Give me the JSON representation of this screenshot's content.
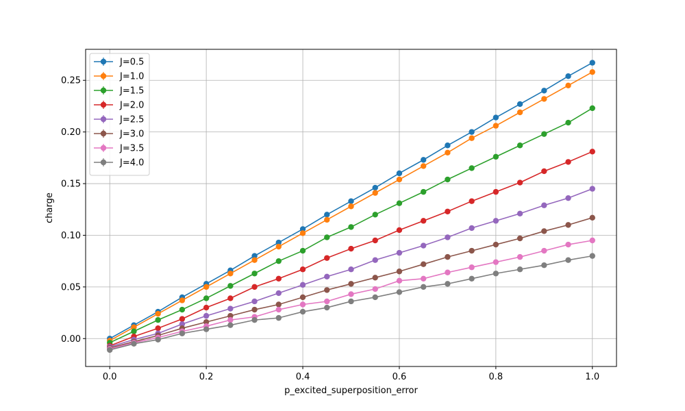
{
  "chart_data": {
    "type": "line",
    "title": "",
    "xlabel": "p_excited_superposition_error",
    "ylabel": "charge",
    "xlim": [
      -0.05,
      1.05
    ],
    "ylim": [
      -0.027,
      0.28
    ],
    "x_ticks": [
      0.0,
      0.2,
      0.4,
      0.6,
      0.8,
      1.0
    ],
    "x_tick_labels": [
      "0.0",
      "0.2",
      "0.4",
      "0.6",
      "0.8",
      "1.0"
    ],
    "y_ticks": [
      0.0,
      0.05,
      0.1,
      0.15,
      0.2,
      0.25
    ],
    "y_tick_labels": [
      "0.00",
      "0.05",
      "0.10",
      "0.15",
      "0.20",
      "0.25"
    ],
    "grid": true,
    "legend_placement": "top-left",
    "marker": "circle",
    "x": [
      0.0,
      0.05,
      0.1,
      0.15,
      0.2,
      0.25,
      0.3,
      0.35,
      0.4,
      0.45,
      0.5,
      0.55,
      0.6,
      0.65,
      0.7,
      0.75,
      0.8,
      0.85,
      0.9,
      0.95,
      1.0
    ],
    "series": [
      {
        "name": "J=0.5",
        "color": "#1f77b4",
        "values": [
          0.0,
          0.013,
          0.026,
          0.04,
          0.053,
          0.066,
          0.08,
          0.093,
          0.106,
          0.12,
          0.133,
          0.146,
          0.16,
          0.173,
          0.187,
          0.2,
          0.214,
          0.227,
          0.24,
          0.254,
          0.267
        ]
      },
      {
        "name": "J=1.0",
        "color": "#ff7f0e",
        "values": [
          -0.002,
          0.011,
          0.024,
          0.037,
          0.05,
          0.063,
          0.076,
          0.089,
          0.102,
          0.115,
          0.128,
          0.141,
          0.154,
          0.167,
          0.18,
          0.194,
          0.206,
          0.219,
          0.232,
          0.245,
          0.258
        ]
      },
      {
        "name": "J=1.5",
        "color": "#2ca02c",
        "values": [
          -0.004,
          0.007,
          0.018,
          0.028,
          0.039,
          0.051,
          0.063,
          0.075,
          0.085,
          0.098,
          0.108,
          0.12,
          0.131,
          0.142,
          0.154,
          0.165,
          0.176,
          0.187,
          0.198,
          0.209,
          0.223
        ]
      },
      {
        "name": "J=2.0",
        "color": "#d62728",
        "values": [
          -0.007,
          0.002,
          0.01,
          0.019,
          0.03,
          0.039,
          0.05,
          0.058,
          0.067,
          0.078,
          0.087,
          0.095,
          0.105,
          0.114,
          0.123,
          0.133,
          0.142,
          0.151,
          0.162,
          0.171,
          0.181
        ]
      },
      {
        "name": "J=2.5",
        "color": "#9467bd",
        "values": [
          -0.008,
          -0.001,
          0.005,
          0.014,
          0.022,
          0.029,
          0.036,
          0.044,
          0.052,
          0.06,
          0.067,
          0.076,
          0.083,
          0.09,
          0.098,
          0.107,
          0.114,
          0.121,
          0.129,
          0.136,
          0.145
        ]
      },
      {
        "name": "J=3.0",
        "color": "#8c564b",
        "values": [
          -0.009,
          -0.003,
          0.003,
          0.01,
          0.016,
          0.022,
          0.028,
          0.033,
          0.04,
          0.047,
          0.053,
          0.059,
          0.065,
          0.072,
          0.079,
          0.085,
          0.091,
          0.097,
          0.104,
          0.11,
          0.117
        ]
      },
      {
        "name": "J=3.5",
        "color": "#e377c2",
        "values": [
          -0.01,
          -0.004,
          0.001,
          0.007,
          0.012,
          0.018,
          0.021,
          0.028,
          0.033,
          0.036,
          0.043,
          0.048,
          0.056,
          0.058,
          0.064,
          0.069,
          0.074,
          0.079,
          0.085,
          0.091,
          0.095
        ]
      },
      {
        "name": "J=4.0",
        "color": "#7f7f7f",
        "values": [
          -0.011,
          -0.005,
          -0.001,
          0.005,
          0.009,
          0.013,
          0.018,
          0.02,
          0.026,
          0.03,
          0.036,
          0.04,
          0.045,
          0.05,
          0.053,
          0.058,
          0.063,
          0.067,
          0.071,
          0.076,
          0.08
        ]
      }
    ]
  }
}
